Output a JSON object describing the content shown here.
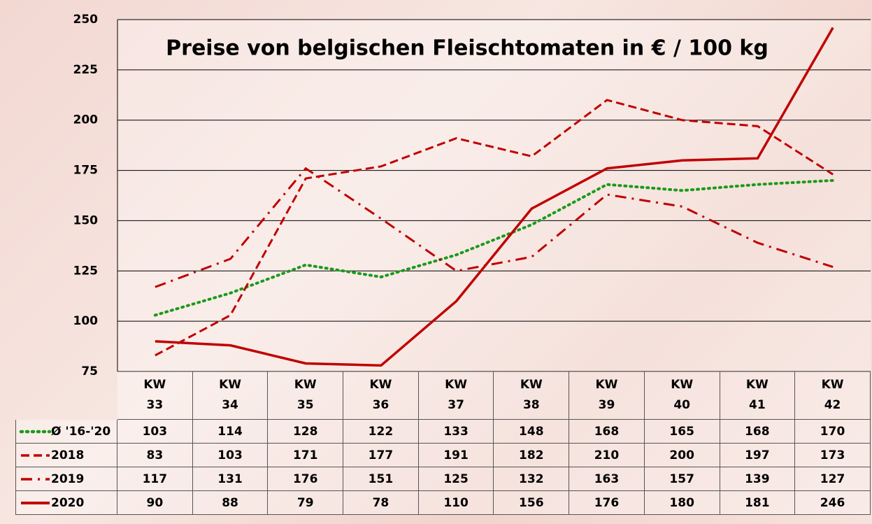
{
  "chart_data": {
    "type": "line",
    "title": "Preise von belgischen Fleischtomaten in € / 100 kg",
    "categories": [
      "KW 33",
      "KW 34",
      "KW 35",
      "KW 36",
      "KW 37",
      "KW 38",
      "KW 39",
      "KW 40",
      "KW 41",
      "KW 42"
    ],
    "series": [
      {
        "name": "Ø '16-'20",
        "color": "#1a9a1a",
        "dash": "dotted",
        "values": [
          103,
          114,
          128,
          122,
          133,
          148,
          168,
          165,
          168,
          170
        ]
      },
      {
        "name": "2018",
        "color": "#c00000",
        "dash": "dashed",
        "values": [
          83,
          103,
          171,
          177,
          191,
          182,
          210,
          200,
          197,
          173
        ]
      },
      {
        "name": "2019",
        "color": "#c00000",
        "dash": "dashdot",
        "values": [
          117,
          131,
          176,
          151,
          125,
          132,
          163,
          157,
          139,
          127
        ]
      },
      {
        "name": "2020",
        "color": "#c00000",
        "dash": "solid",
        "values": [
          90,
          88,
          79,
          78,
          110,
          156,
          176,
          180,
          181,
          246
        ]
      }
    ],
    "ylim": [
      75,
      250
    ],
    "yticks": [
      75,
      100,
      125,
      150,
      175,
      200,
      225,
      250
    ],
    "grid": true
  }
}
